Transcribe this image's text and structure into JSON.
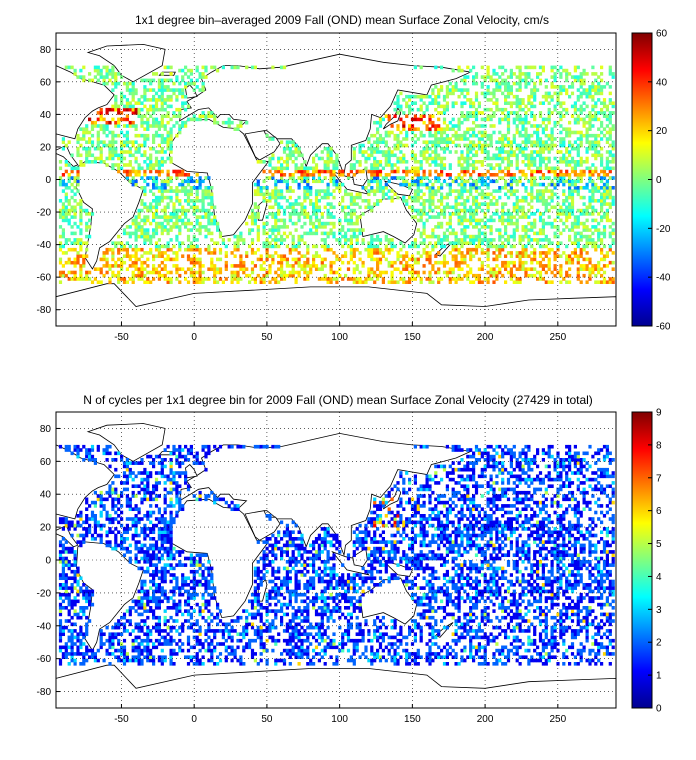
{
  "chart_data": [
    {
      "type": "heatmap",
      "title": "1x1 degree bin–averaged 2009 Fall (OND) mean Surface Zonal Velocity, cm/s",
      "xlim": [
        -95,
        290
      ],
      "ylim": [
        -90,
        90
      ],
      "xticks": [
        "-50",
        "0",
        "50",
        "100",
        "150",
        "200",
        "250"
      ],
      "xtick_values": [
        -50,
        0,
        50,
        100,
        150,
        200,
        250
      ],
      "yticks": [
        "80",
        "60",
        "40",
        "20",
        "0",
        "-20",
        "-40",
        "-60",
        "-80"
      ],
      "ytick_values": [
        80,
        60,
        40,
        20,
        0,
        -20,
        -40,
        -60,
        -80
      ],
      "grid": true,
      "colormap": "jet",
      "colorbar": {
        "min": -60,
        "max": 60,
        "ticks": [
          "60",
          "40",
          "20",
          "0",
          "-20",
          "-40",
          "-60"
        ],
        "tick_values": [
          60,
          40,
          20,
          0,
          -20,
          -40,
          -60
        ]
      }
    },
    {
      "type": "heatmap",
      "title": "N of cycles per 1x1 degree bin for 2009 Fall (OND) mean Surface Zonal Velocity (27429 in total)",
      "xlim": [
        -95,
        290
      ],
      "ylim": [
        -90,
        90
      ],
      "xticks": [
        "-50",
        "0",
        "50",
        "100",
        "150",
        "200",
        "250"
      ],
      "xtick_values": [
        -50,
        0,
        50,
        100,
        150,
        200,
        250
      ],
      "yticks": [
        "80",
        "60",
        "40",
        "20",
        "0",
        "-20",
        "-40",
        "-60",
        "-80"
      ],
      "ytick_values": [
        80,
        60,
        40,
        20,
        0,
        -20,
        -40,
        -60,
        -80
      ],
      "grid": true,
      "colormap": "jet",
      "colorbar": {
        "min": 0,
        "max": 9,
        "ticks": [
          "9",
          "8",
          "7",
          "6",
          "5",
          "4",
          "3",
          "2",
          "1",
          "0"
        ],
        "tick_values": [
          9,
          8,
          7,
          6,
          5,
          4,
          3,
          2,
          1,
          0
        ]
      }
    }
  ]
}
